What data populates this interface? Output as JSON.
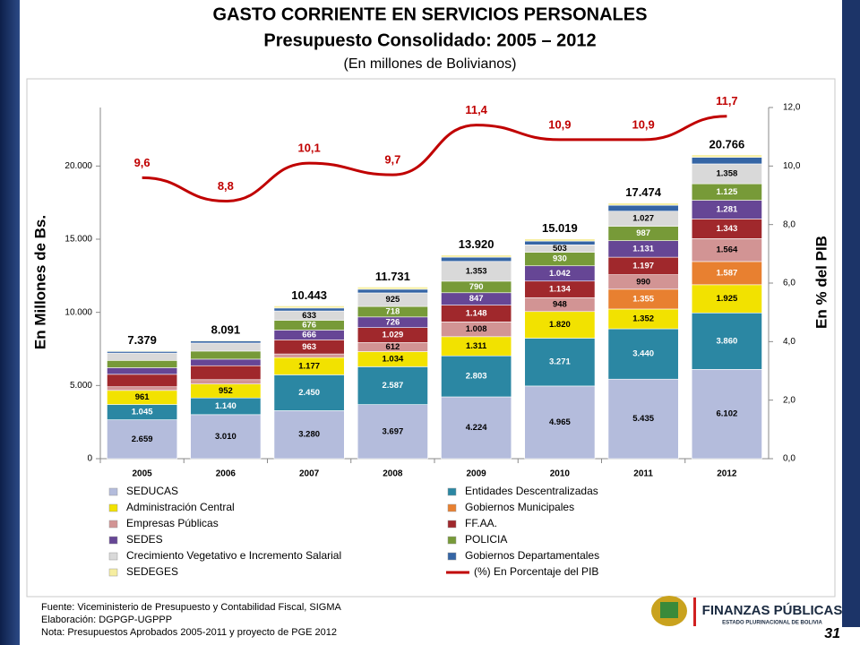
{
  "header": {
    "title": "GASTO CORRIENTE EN SERVICIOS PERSONALES",
    "subtitle": "Presupuesto Consolidado: 2005 – 2012",
    "units": "(En millones de Bolivianos)"
  },
  "chart_data": {
    "type": "stacked_bar_line",
    "ylabel": "En Millones de Bs.",
    "y2label": "En % del PIB",
    "categories": [
      "2005",
      "2006",
      "2007",
      "2008",
      "2009",
      "2010",
      "2011",
      "2012"
    ],
    "ylim": [
      0,
      24000
    ],
    "yticks": [
      0,
      {
        "value": 5000,
        "label": "5.000"
      },
      {
        "value": 10000,
        "label": "10.000"
      },
      {
        "value": 15000,
        "label": "15.000"
      },
      {
        "value": 20000,
        "label": "20.000"
      }
    ],
    "y2lim": [
      0,
      12
    ],
    "y2ticks": [
      {
        "value": 0,
        "label": "0,0"
      },
      {
        "value": 2,
        "label": "2,0"
      },
      {
        "value": 4,
        "label": "4,0"
      },
      {
        "value": 6,
        "label": "6,0"
      },
      {
        "value": 8,
        "label": "8,0"
      },
      {
        "value": 10,
        "label": "10,0"
      },
      {
        "value": 12,
        "label": "12,0"
      }
    ],
    "series": [
      {
        "name": "SEDUCAS",
        "color": "#b4bcdc",
        "values": [
          2659,
          3010,
          3280,
          3697,
          4224,
          4965,
          5435,
          6102
        ],
        "value_labels": [
          "2.659",
          "3.010",
          "3.280",
          "3.697",
          "4.224",
          "4.965",
          "5.435",
          "6.102"
        ]
      },
      {
        "name": "Entidades Descentralizadas",
        "color": "#2b87a3",
        "values": [
          1045,
          1140,
          2450,
          2587,
          2803,
          3271,
          3440,
          3860
        ],
        "value_labels": [
          "1.045",
          "1.140",
          "2.450",
          "2.587",
          "2.803",
          "3.271",
          "3.440",
          "3.860"
        ]
      },
      {
        "name": "Administración Central",
        "color": "#f2e200",
        "values": [
          961,
          952,
          1177,
          1034,
          1311,
          1820,
          1352,
          1925
        ],
        "value_labels": [
          "961",
          "952",
          "1.177",
          "1.034",
          "1.311",
          "1.820",
          "1.352",
          "1.925"
        ]
      },
      {
        "name": "Gobiernos Municipales",
        "color": "#e88030",
        "values": [
          0,
          0,
          0,
          0,
          0,
          0,
          1355,
          1587
        ],
        "value_labels": [
          null,
          null,
          null,
          null,
          null,
          null,
          "1.355",
          "1.587"
        ]
      },
      {
        "name": "Empresas Públicas",
        "color": "#d29494",
        "values": [
          250,
          300,
          250,
          612,
          1008,
          948,
          990,
          1564
        ],
        "value_labels": [
          null,
          null,
          null,
          "612",
          "1.008",
          "948",
          "990",
          "1.564"
        ]
      },
      {
        "name": "FF.AA.",
        "color": "#a0282c",
        "values": [
          850,
          950,
          963,
          1029,
          1148,
          1134,
          1197,
          1343
        ],
        "value_labels": [
          null,
          null,
          "963",
          "1.029",
          "1.148",
          "1.134",
          "1.197",
          "1.343"
        ]
      },
      {
        "name": "SEDES",
        "color": "#664695",
        "values": [
          450,
          450,
          666,
          726,
          847,
          1042,
          1131,
          1281
        ],
        "value_labels": [
          null,
          null,
          "666",
          "726",
          "847",
          "1.042",
          "1.131",
          "1.281"
        ]
      },
      {
        "name": "POLICIA",
        "color": "#779a38",
        "values": [
          500,
          550,
          676,
          718,
          790,
          930,
          987,
          1125
        ],
        "value_labels": [
          null,
          null,
          "676",
          "718",
          "790",
          "930",
          "987",
          "1.125"
        ]
      },
      {
        "name": "Crecimiento Vegetativo e Incremento Salarial",
        "color": "#d9d9d9",
        "values": [
          500,
          550,
          633,
          925,
          1353,
          503,
          1027,
          1358
        ],
        "value_labels": [
          null,
          null,
          "633",
          "925",
          "1.353",
          "503",
          "1.027",
          "1.358"
        ]
      },
      {
        "name": "Gobiernos Departamentales",
        "color": "#3565a5",
        "values": [
          114,
          139,
          200,
          250,
          286,
          256,
          400,
          450
        ],
        "value_labels": [
          null,
          null,
          null,
          null,
          null,
          null,
          null,
          null
        ]
      },
      {
        "name": "SEDEGES",
        "color": "#f6eea0",
        "values": [
          50,
          50,
          148,
          153,
          150,
          150,
          160,
          171
        ],
        "value_labels": [
          null,
          null,
          null,
          null,
          null,
          null,
          null,
          null
        ]
      }
    ],
    "totals": {
      "values": [
        7379,
        8091,
        10443,
        11731,
        13920,
        15019,
        17474,
        20766
      ],
      "value_labels": [
        "7.379",
        "8.091",
        "10.443",
        "11.731",
        "13.920",
        "15.019",
        "17.474",
        "20.766"
      ]
    },
    "line": {
      "name": "(%) En Porcentaje del PIB",
      "color": "#c00000",
      "axis": "y2",
      "values": [
        9.6,
        8.8,
        10.1,
        9.7,
        11.4,
        10.9,
        10.9,
        11.7
      ],
      "value_labels": [
        "9,6",
        "8,8",
        "10,1",
        "9,7",
        "11,4",
        "10,9",
        "10,9",
        "11,7"
      ]
    }
  },
  "footer": {
    "notes": [
      "Fuente: Viceministerio de Presupuesto y Contabilidad Fiscal, SIGMA",
      "Elaboración: DGPGP-UGPPP",
      "Nota: Presupuestos Aprobados 2005-2011 y proyecto de PGE 2012"
    ],
    "logo_title": "FINANZAS PÚBLICAS",
    "logo_subtitle": "ESTADO PLURINACIONAL DE BOLIVIA",
    "page_number": "31"
  }
}
